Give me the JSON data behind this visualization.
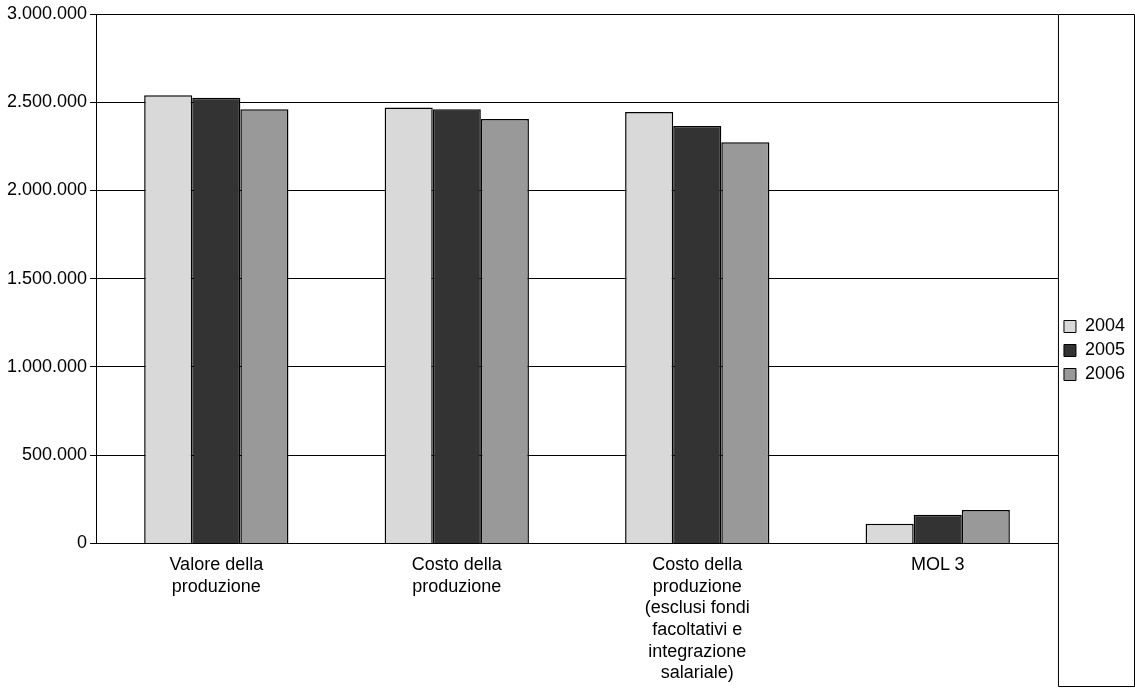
{
  "chart_data": {
    "type": "bar",
    "categories": [
      "Valore della produzione",
      "Costo della produzione",
      "Costo della produzione (esclusi fondi facoltativi e integrazione salariale)",
      "MOL 3"
    ],
    "series": [
      {
        "name": "2004",
        "color": "#d9d9d9",
        "values": [
          2540000,
          2470000,
          2445000,
          111000
        ]
      },
      {
        "name": "2005",
        "color": "#333333",
        "values": [
          2525000,
          2460000,
          2366000,
          162000
        ]
      },
      {
        "name": "2006",
        "color": "#999999",
        "values": [
          2460000,
          2405000,
          2273000,
          189000
        ]
      }
    ],
    "ylim": [
      0,
      3000000
    ],
    "yticks": [
      {
        "value": 0,
        "label": "0"
      },
      {
        "value": 500000,
        "label": "500.000"
      },
      {
        "value": 1000000,
        "label": "1.000.000"
      },
      {
        "value": 1500000,
        "label": "1.500.000"
      },
      {
        "value": 2000000,
        "label": "2.000.000"
      },
      {
        "value": 2500000,
        "label": "2.500.000"
      },
      {
        "value": 3000000,
        "label": "3.000.000"
      }
    ],
    "grid": "y",
    "legend": "right"
  }
}
